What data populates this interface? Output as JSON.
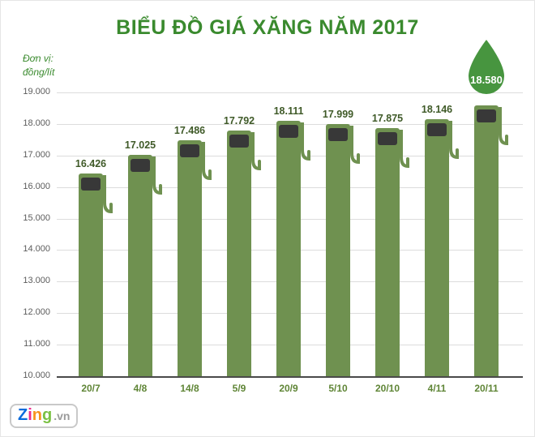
{
  "title": "BIỂU ĐỒ GIÁ XĂNG NĂM 2017",
  "unit": {
    "line1": "Đơn vị:",
    "line2": "đồng/lít"
  },
  "chart_data": {
    "type": "bar",
    "title": "BIỂU ĐỒ GIÁ XĂNG NĂM 2017",
    "unit": "đồng/lít",
    "categories": [
      "20/7",
      "4/8",
      "14/8",
      "5/9",
      "20/9",
      "5/10",
      "20/10",
      "4/11",
      "20/11"
    ],
    "values": [
      16426,
      17025,
      17486,
      17792,
      18111,
      17999,
      17875,
      18146,
      18580
    ],
    "value_labels": [
      "16.426",
      "17.025",
      "17.486",
      "17.792",
      "18.111",
      "17.999",
      "17.875",
      "18.146",
      "18.580"
    ],
    "ylabel_ticks": [
      "19.000",
      "18.000",
      "17.000",
      "16.000",
      "15.000",
      "14.000",
      "13.000",
      "12.000",
      "11.000",
      "10.000"
    ],
    "ylim": [
      10000,
      19000
    ],
    "grid": true,
    "legend": false,
    "bar_color": "#6f9150",
    "screen_color": "#383838",
    "droplet_color": "#47953f",
    "highlight_last": true
  },
  "logo": {
    "letters": [
      {
        "ch": "Z",
        "color": "#0b6bdc"
      },
      {
        "ch": "i",
        "color": "#ee2a8b"
      },
      {
        "ch": "n",
        "color": "#f7941d"
      },
      {
        "ch": "g",
        "color": "#7ac143"
      }
    ],
    "suffix": ".vn",
    "suffix_color": "#9b9b9b"
  }
}
